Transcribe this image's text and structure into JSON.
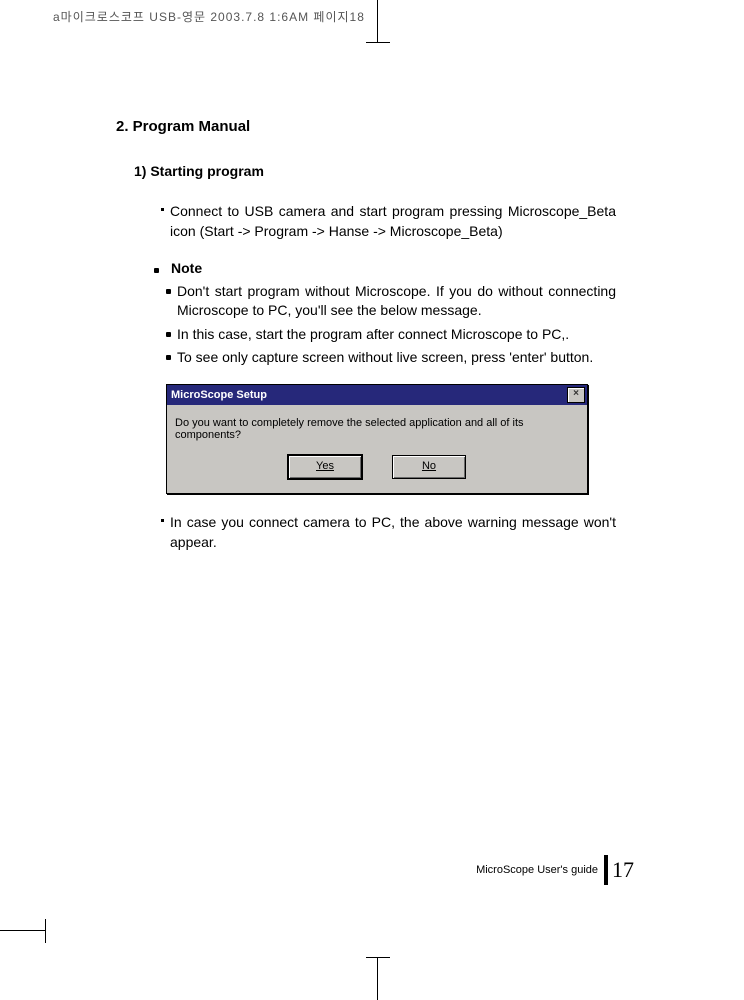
{
  "header_meta": "a마이크로스코프 USB-영문  2003.7.8 1:6AM 페이지18",
  "section_title": "2. Program Manual",
  "subsection_title": "1) Starting program",
  "step1": "Connect to USB camera and start program pressing Microscope_Beta icon (Start -> Program -> Hanse -> Microscope_Beta)",
  "note_label": "Note",
  "note_items": [
    "Don't start program without Microscope. If you do without connecting Microscope to PC, you'll see the below message.",
    "In this case, start the program after connect Microscope to PC,.",
    "To see only capture screen without live screen, press 'enter' button."
  ],
  "dialog": {
    "title": "MicroScope Setup",
    "message": "Do you want to completely remove the selected application and all of its components?",
    "yes": "Yes",
    "no": "No",
    "close": "×"
  },
  "after_dialog": "In case you connect camera to PC, the above warning message won't appear.",
  "footer_guide": "MicroScope User's guide",
  "footer_page": "17",
  "colors": {
    "titlebar": "#26287a",
    "dialog_bg": "#c8c6c2"
  }
}
